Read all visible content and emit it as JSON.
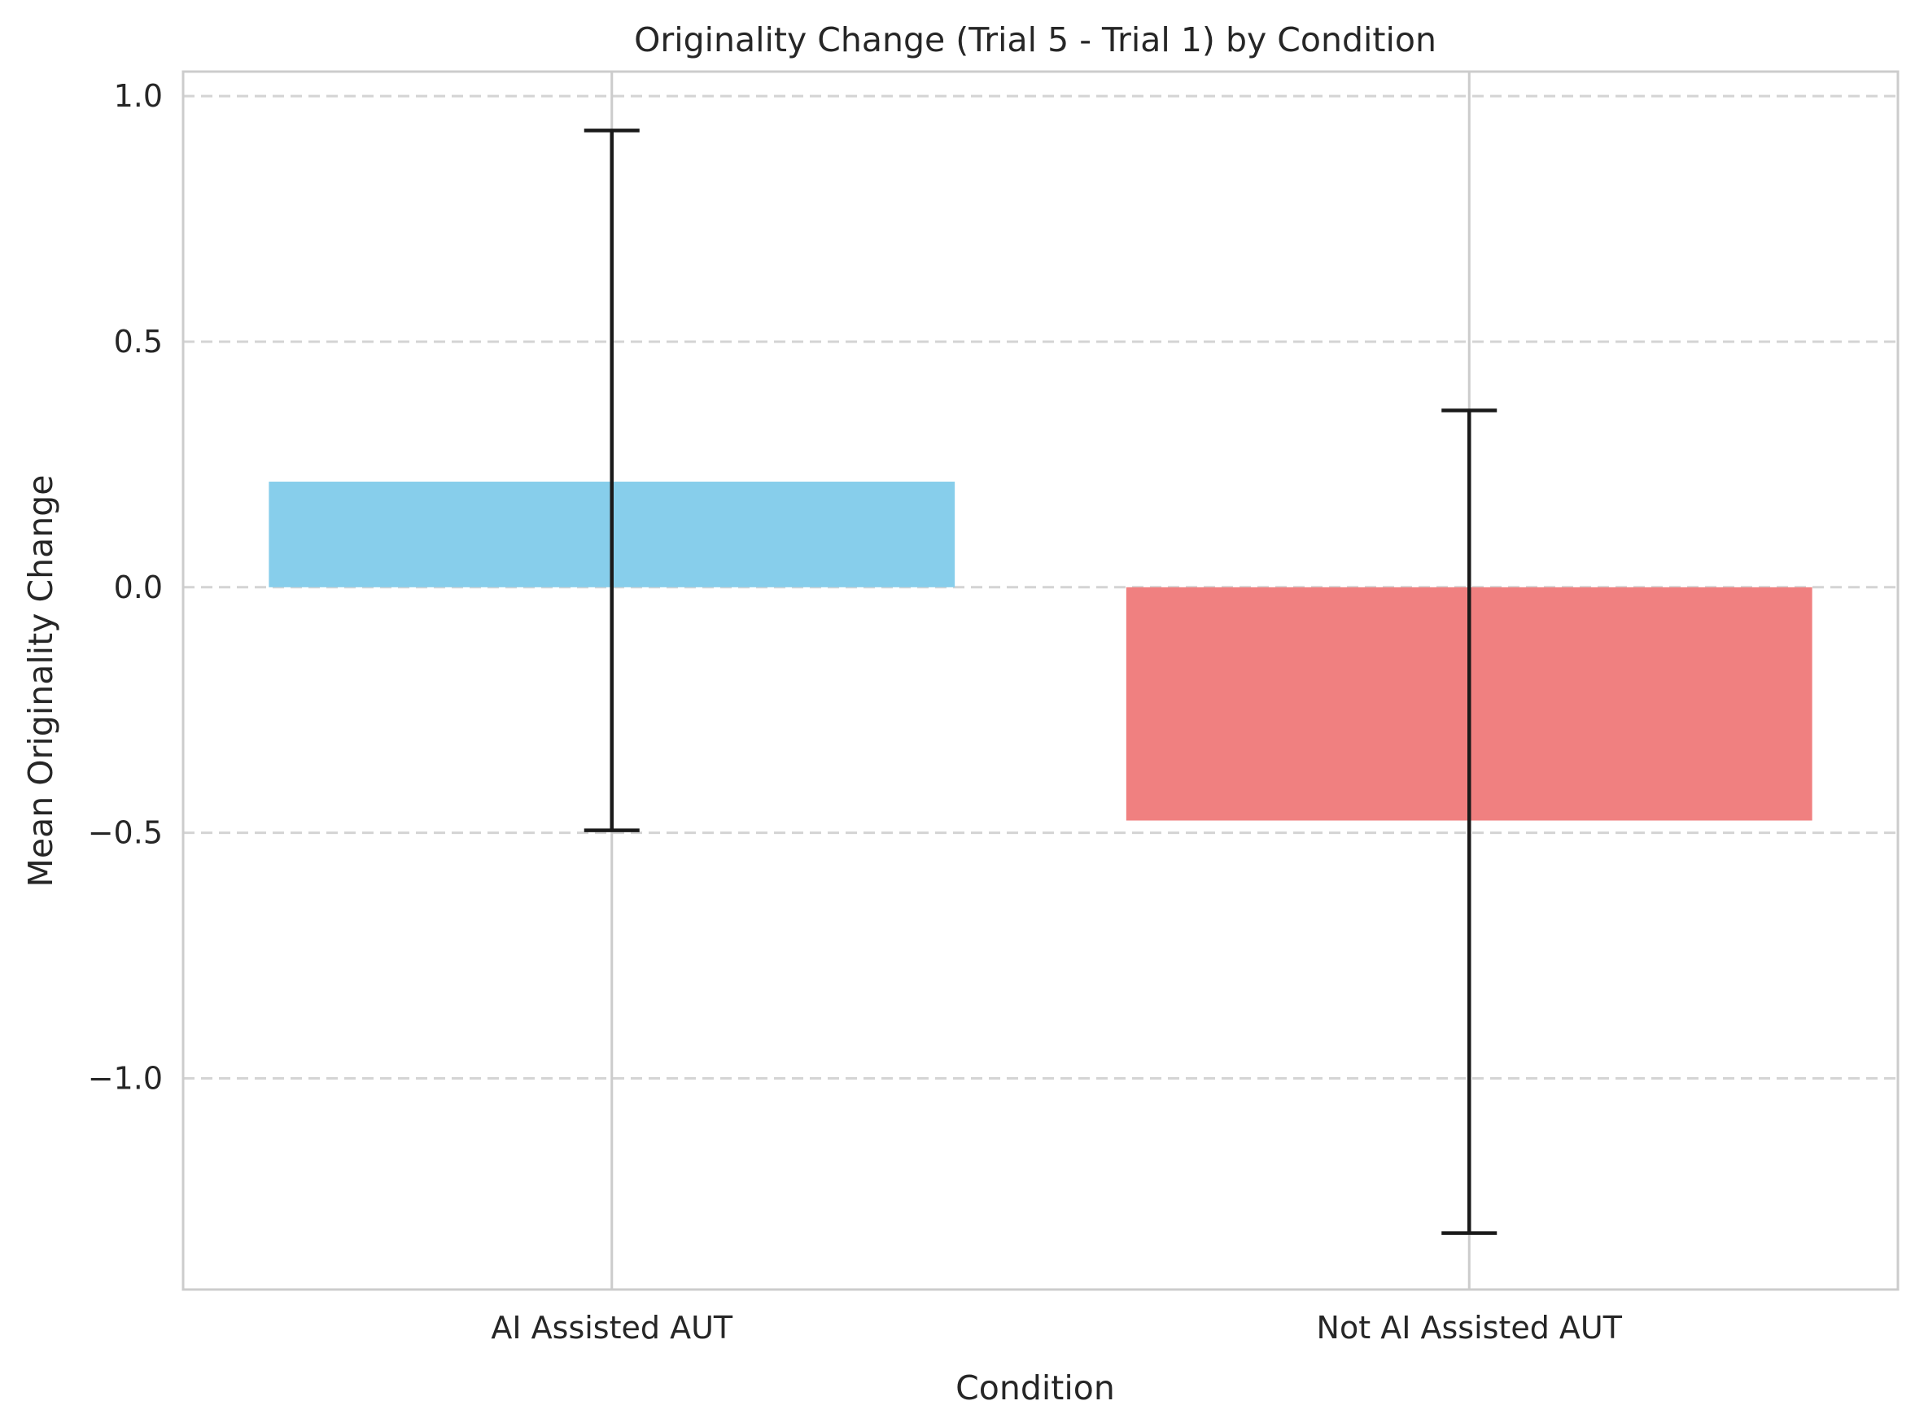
{
  "chart_data": {
    "type": "bar",
    "title": "Originality Change (Trial 5 - Trial 1) by Condition",
    "xlabel": "Condition",
    "ylabel": "Mean Originality Change",
    "categories": [
      "AI Assisted AUT",
      "Not AI Assisted AUT"
    ],
    "values": [
      0.215,
      -0.475
    ],
    "error_low": [
      -0.495,
      -1.315
    ],
    "error_high": [
      0.93,
      0.36
    ],
    "colors": [
      "#87ceeb",
      "#f08080"
    ],
    "ylim": [
      -1.43,
      1.05
    ],
    "yticks": [
      1.0,
      0.5,
      0.0,
      -0.5,
      -1.0
    ],
    "ytick_labels": [
      "1.0",
      "0.5",
      "0.0",
      "−0.5",
      "−1.0"
    ],
    "grid": true,
    "grid_style": "dashed horizontal, solid vertical"
  }
}
